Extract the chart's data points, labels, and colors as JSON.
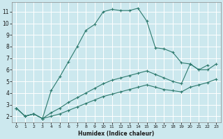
{
  "xlabel": "Humidex (Indice chaleur)",
  "bg_color": "#cce8ee",
  "grid_color": "#ffffff",
  "line_color": "#2d7a6e",
  "xlim": [
    -0.5,
    23.5
  ],
  "ylim": [
    1.5,
    11.8
  ],
  "xticks": [
    0,
    1,
    2,
    3,
    4,
    5,
    6,
    7,
    8,
    9,
    10,
    11,
    12,
    13,
    14,
    15,
    16,
    17,
    18,
    19,
    20,
    21,
    22,
    23
  ],
  "yticks": [
    2,
    3,
    4,
    5,
    6,
    7,
    8,
    9,
    10,
    11
  ],
  "line1_x": [
    0,
    1,
    2,
    3,
    4,
    5,
    6,
    7,
    8,
    9,
    10,
    11,
    12,
    13,
    14,
    15,
    16,
    17,
    18,
    19,
    20,
    21,
    22
  ],
  "line1_y": [
    2.7,
    2.0,
    2.2,
    1.8,
    4.2,
    5.4,
    6.7,
    8.0,
    9.4,
    9.9,
    11.0,
    11.2,
    11.1,
    11.1,
    11.3,
    10.2,
    7.9,
    7.8,
    7.5,
    6.6,
    6.5,
    6.0,
    6.4
  ],
  "line2_x": [
    0,
    1,
    2,
    3,
    4,
    5,
    6,
    7,
    8,
    9,
    10,
    11,
    12,
    13,
    14,
    15,
    16,
    17,
    18,
    19,
    20,
    21,
    22,
    23
  ],
  "line2_y": [
    2.7,
    2.0,
    2.2,
    1.8,
    2.3,
    2.7,
    3.2,
    3.6,
    4.0,
    4.4,
    4.8,
    5.1,
    5.3,
    5.5,
    5.7,
    5.9,
    5.6,
    5.3,
    5.0,
    4.8,
    6.5,
    6.0,
    6.0,
    6.5
  ],
  "line3_x": [
    0,
    1,
    2,
    3,
    4,
    5,
    6,
    7,
    8,
    9,
    10,
    11,
    12,
    13,
    14,
    15,
    16,
    17,
    18,
    19,
    20,
    21,
    22,
    23
  ],
  "line3_y": [
    2.7,
    2.0,
    2.2,
    1.8,
    2.0,
    2.2,
    2.5,
    2.8,
    3.1,
    3.4,
    3.7,
    3.9,
    4.1,
    4.3,
    4.5,
    4.7,
    4.5,
    4.3,
    4.2,
    4.1,
    4.5,
    4.7,
    4.9,
    5.2
  ]
}
